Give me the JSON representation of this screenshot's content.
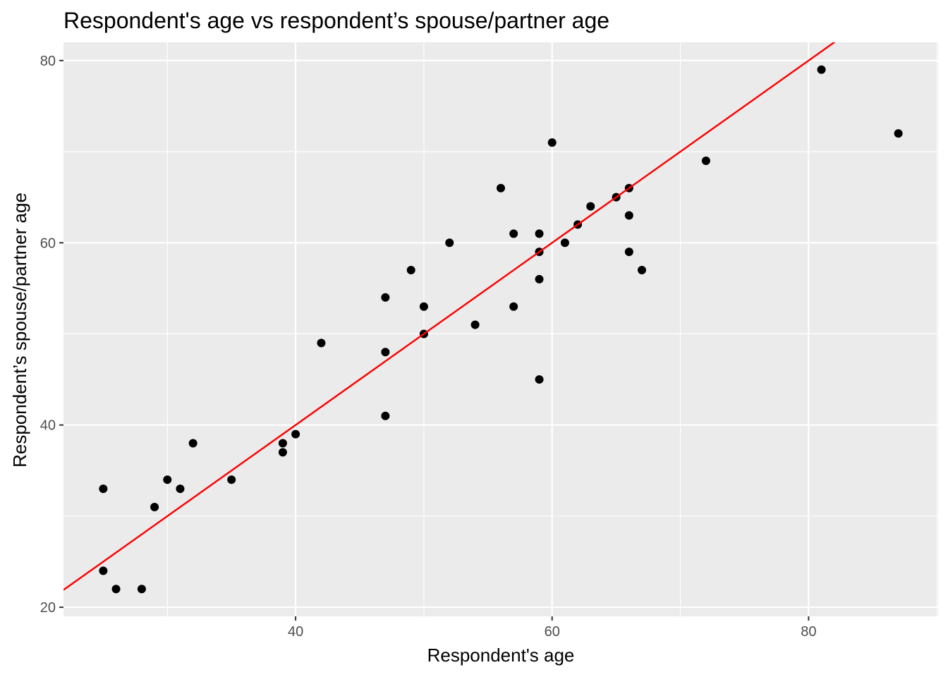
{
  "chart_data": {
    "type": "scatter",
    "title": "Respondent's age vs respondent’s spouse/partner age",
    "xlabel": "Respondent's age",
    "ylabel": "Respondent’s spouse/partner age",
    "xlim": [
      21.9,
      90.1
    ],
    "ylim": [
      19.0,
      82.0
    ],
    "x_ticks": [
      40,
      60,
      80
    ],
    "y_ticks": [
      20,
      40,
      60,
      80
    ],
    "x_tick_labels": [
      "40",
      "60",
      "80"
    ],
    "y_tick_labels": [
      "20",
      "40",
      "60",
      "80"
    ],
    "grid": true,
    "legend": "none",
    "panel_background": "#ebebeb",
    "grid_color": "#ffffff",
    "point_color": "#000000",
    "fit_line_color": "#ff0000",
    "points": [
      {
        "x": 25,
        "y": 33
      },
      {
        "x": 25,
        "y": 24
      },
      {
        "x": 26,
        "y": 22
      },
      {
        "x": 28,
        "y": 22
      },
      {
        "x": 29,
        "y": 31
      },
      {
        "x": 30,
        "y": 34
      },
      {
        "x": 31,
        "y": 33
      },
      {
        "x": 32,
        "y": 38
      },
      {
        "x": 35,
        "y": 34
      },
      {
        "x": 39,
        "y": 38
      },
      {
        "x": 39,
        "y": 37
      },
      {
        "x": 40,
        "y": 39
      },
      {
        "x": 42,
        "y": 49
      },
      {
        "x": 47,
        "y": 54
      },
      {
        "x": 47,
        "y": 48
      },
      {
        "x": 47,
        "y": 41
      },
      {
        "x": 49,
        "y": 57
      },
      {
        "x": 50,
        "y": 53
      },
      {
        "x": 50,
        "y": 50
      },
      {
        "x": 52,
        "y": 60
      },
      {
        "x": 54,
        "y": 51
      },
      {
        "x": 56,
        "y": 66
      },
      {
        "x": 57,
        "y": 61
      },
      {
        "x": 57,
        "y": 53
      },
      {
        "x": 59,
        "y": 61
      },
      {
        "x": 59,
        "y": 59
      },
      {
        "x": 59,
        "y": 56
      },
      {
        "x": 59,
        "y": 45
      },
      {
        "x": 60,
        "y": 71
      },
      {
        "x": 61,
        "y": 60
      },
      {
        "x": 62,
        "y": 62
      },
      {
        "x": 63,
        "y": 64
      },
      {
        "x": 65,
        "y": 65
      },
      {
        "x": 66,
        "y": 66
      },
      {
        "x": 66,
        "y": 63
      },
      {
        "x": 66,
        "y": 59
      },
      {
        "x": 67,
        "y": 57
      },
      {
        "x": 72,
        "y": 69
      },
      {
        "x": 81,
        "y": 79
      },
      {
        "x": 87,
        "y": 72
      }
    ],
    "fit_line": {
      "x": [
        21.9,
        90.1
      ],
      "y": [
        21.9,
        90.1
      ]
    }
  }
}
